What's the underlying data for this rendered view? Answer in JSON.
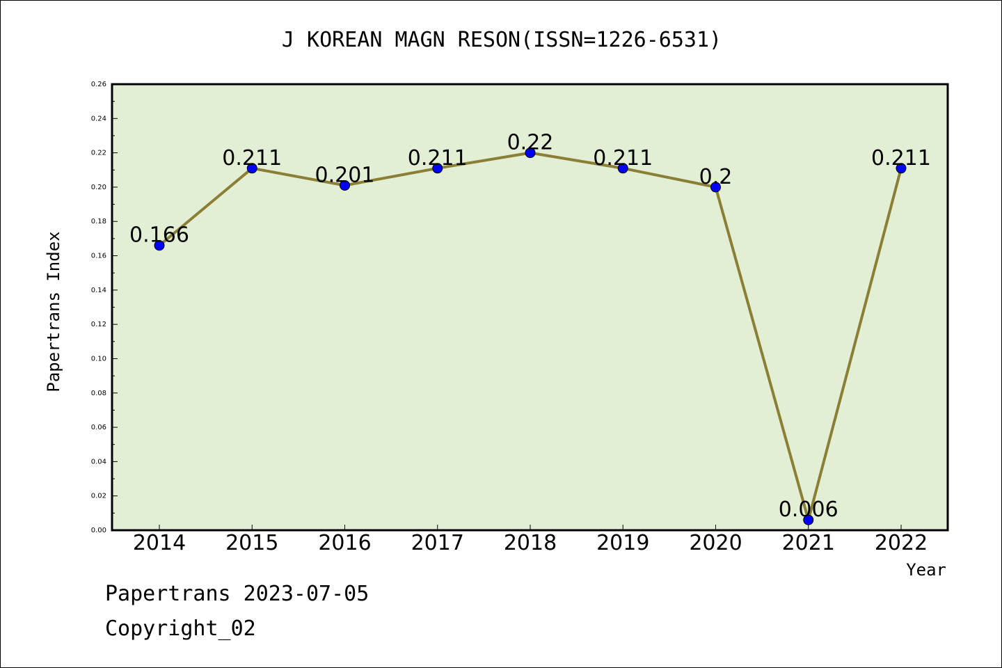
{
  "footer": {
    "line1": "Papertrans 2023-07-05",
    "line2": "Copyright_02"
  },
  "chart_data": {
    "type": "line",
    "title": "J KOREAN MAGN RESON(ISSN=1226-6531)",
    "xlabel": "Year",
    "ylabel": "Papertrans Index",
    "categories": [
      "2014",
      "2015",
      "2016",
      "2017",
      "2018",
      "2019",
      "2020",
      "2021",
      "2022"
    ],
    "values": [
      0.166,
      0.211,
      0.201,
      0.211,
      0.22,
      0.211,
      0.2,
      0.006,
      0.211
    ],
    "data_labels": [
      "0.166",
      "0.211",
      "0.201",
      "0.211",
      "0.22",
      "0.211",
      "0.2",
      "0.006",
      "0.211"
    ],
    "ylim": [
      0,
      0.26
    ],
    "yticks": [
      "0.00",
      "0.02",
      "0.04",
      "0.06",
      "0.08",
      "0.10",
      "0.12",
      "0.14",
      "0.16",
      "0.18",
      "0.20",
      "0.22",
      "0.24",
      "0.26"
    ],
    "grid": false,
    "legend": "none",
    "colors": {
      "plot_background": "#e2efd4",
      "line": "#8b7f35",
      "marker": "#0000ff"
    }
  }
}
